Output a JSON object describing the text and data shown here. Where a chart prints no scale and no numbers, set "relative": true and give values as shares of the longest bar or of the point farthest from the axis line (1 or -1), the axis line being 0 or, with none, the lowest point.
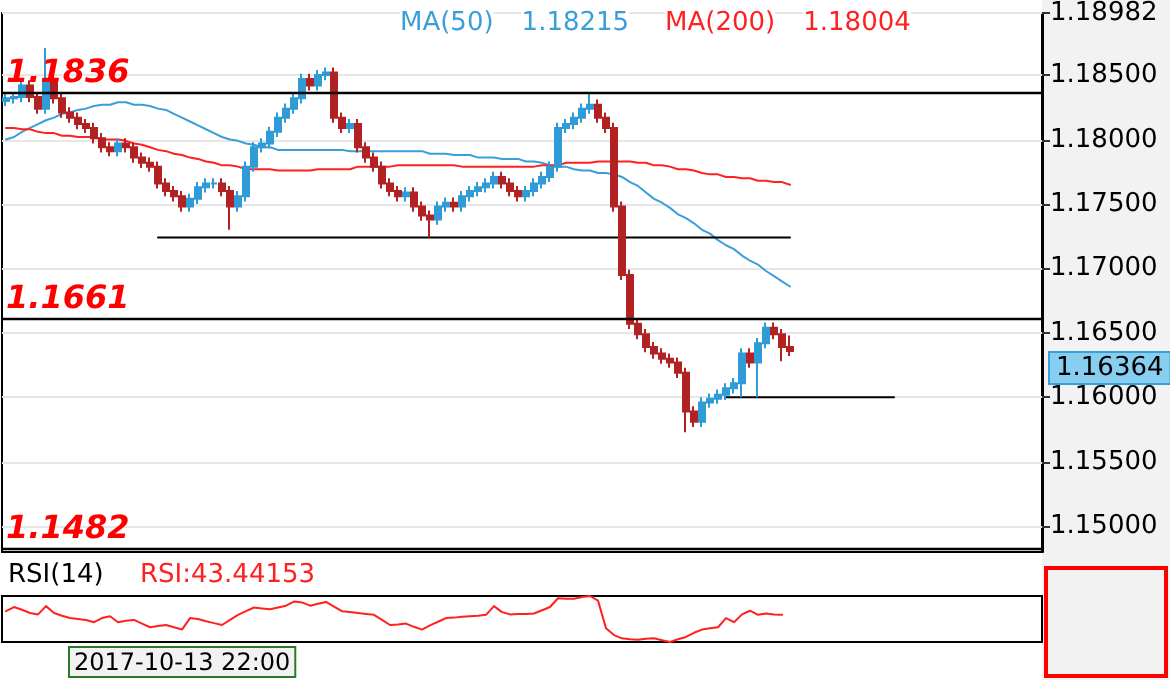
{
  "chart_data": [
    {
      "type": "candlestick",
      "grid": "y",
      "tick_labels": "y",
      "marker": "none",
      "annotations": [
        "1.18215",
        "1.18004",
        "1.16364"
      ],
      "categories": [
        null,
        null,
        null,
        null,
        null,
        null,
        null,
        null,
        null,
        null,
        null,
        null,
        null,
        null,
        null,
        null,
        null,
        null,
        null,
        null,
        null,
        null,
        null,
        null,
        null,
        null,
        null,
        null,
        null,
        null,
        null,
        null,
        null,
        null,
        null,
        null,
        null,
        null,
        null,
        null,
        null,
        null,
        null,
        null,
        null,
        null,
        null,
        null,
        null,
        null,
        null,
        null,
        null,
        null,
        null,
        null,
        null,
        null,
        null,
        null,
        null,
        null,
        null,
        null,
        null,
        null,
        null,
        null,
        null,
        null,
        null,
        null,
        null,
        null,
        null,
        null,
        null,
        null,
        null,
        null,
        null,
        null,
        null,
        null,
        null,
        null,
        null,
        null,
        null,
        null,
        null,
        null,
        null,
        null,
        null,
        null,
        null,
        null,
        null,
        null,
        null,
        null,
        null,
        null,
        null,
        null,
        null,
        null,
        null,
        null,
        null,
        null,
        null,
        null,
        null,
        null,
        null,
        null,
        null,
        null,
        null,
        null,
        null,
        null,
        null,
        null,
        null,
        null,
        null,
        null
      ],
      "ylim": [
        1.148,
        1.18982
      ],
      "yticks": [
        {
          "value": 1.15,
          "label": "1.15000"
        },
        {
          "value": 1.155,
          "label": "1.15500"
        },
        {
          "value": 1.16,
          "label": "1.16000"
        },
        {
          "value": 1.165,
          "label": "1.16500"
        },
        {
          "value": 1.17,
          "label": "1.17000"
        },
        {
          "value": 1.175,
          "label": "1.17500"
        },
        {
          "value": 1.18,
          "label": "1.18000"
        },
        {
          "value": 1.185,
          "label": "1.18500"
        },
        {
          "value": 1.18982,
          "label": "1.18982"
        }
      ],
      "ref_lines": [
        {
          "axis": "y",
          "value": 1.1836,
          "label": "1.1836",
          "color": "#000000"
        },
        {
          "axis": "y",
          "value": 1.1661,
          "label": "1.1661",
          "color": "#000000"
        },
        {
          "axis": "y",
          "value": 1.1482,
          "label": "1.1482",
          "color": "#000000"
        }
      ],
      "ohlc": [
        [
          1.183,
          1.1836,
          1.1826,
          1.1832
        ],
        [
          1.1832,
          1.1837,
          1.1828,
          1.1833
        ],
        [
          1.1833,
          1.1846,
          1.1829,
          1.1842
        ],
        [
          1.1842,
          1.1846,
          1.1829,
          1.1833
        ],
        [
          1.1833,
          1.1837,
          1.182,
          1.1824
        ],
        [
          1.1824,
          1.1871,
          1.182,
          1.1847
        ],
        [
          1.1847,
          1.1851,
          1.1828,
          1.1832
        ],
        [
          1.1832,
          1.1836,
          1.1817,
          1.1821
        ],
        [
          1.1821,
          1.1825,
          1.1813,
          1.1817
        ],
        [
          1.1817,
          1.1821,
          1.1808,
          1.1812
        ],
        [
          1.1812,
          1.1816,
          1.1805,
          1.1809
        ],
        [
          1.1809,
          1.1813,
          1.1797,
          1.1801
        ],
        [
          1.1801,
          1.1805,
          1.179,
          1.1794
        ],
        [
          1.1794,
          1.1798,
          1.1787,
          1.1791
        ],
        [
          1.1791,
          1.1801,
          1.1787,
          1.1797
        ],
        [
          1.1797,
          1.1801,
          1.179,
          1.1794
        ],
        [
          1.1794,
          1.1798,
          1.1782,
          1.1786
        ],
        [
          1.1786,
          1.179,
          1.1778,
          1.1782
        ],
        [
          1.1782,
          1.1786,
          1.1775,
          1.1779
        ],
        [
          1.1779,
          1.1783,
          1.1762,
          1.1766
        ],
        [
          1.1766,
          1.177,
          1.1756,
          1.176
        ],
        [
          1.176,
          1.1764,
          1.1752,
          1.1756
        ],
        [
          1.1756,
          1.176,
          1.1744,
          1.1748
        ],
        [
          1.1748,
          1.1758,
          1.1744,
          1.1754
        ],
        [
          1.1754,
          1.1767,
          1.175,
          1.1763
        ],
        [
          1.1763,
          1.177,
          1.1759,
          1.1766
        ],
        [
          1.1766,
          1.177,
          1.1762,
          1.1766
        ],
        [
          1.1766,
          1.177,
          1.1756,
          1.176
        ],
        [
          1.176,
          1.1764,
          1.173,
          1.1748
        ],
        [
          1.1748,
          1.176,
          1.1744,
          1.1756
        ],
        [
          1.1756,
          1.1783,
          1.1752,
          1.1779
        ],
        [
          1.1779,
          1.1798,
          1.1775,
          1.1794
        ],
        [
          1.1794,
          1.1801,
          1.179,
          1.1797
        ],
        [
          1.1797,
          1.181,
          1.1793,
          1.1806
        ],
        [
          1.1806,
          1.1821,
          1.1802,
          1.1817
        ],
        [
          1.1817,
          1.1828,
          1.1813,
          1.1824
        ],
        [
          1.1824,
          1.1836,
          1.182,
          1.1832
        ],
        [
          1.1832,
          1.1851,
          1.1828,
          1.1847
        ],
        [
          1.1847,
          1.1851,
          1.1838,
          1.1842
        ],
        [
          1.1842,
          1.1854,
          1.1838,
          1.185
        ],
        [
          1.185,
          1.1856,
          1.1846,
          1.1852
        ],
        [
          1.1852,
          1.1856,
          1.1813,
          1.1817
        ],
        [
          1.1817,
          1.1821,
          1.1805,
          1.1809
        ],
        [
          1.1809,
          1.1816,
          1.1805,
          1.1812
        ],
        [
          1.1812,
          1.1816,
          1.179,
          1.1794
        ],
        [
          1.1794,
          1.1798,
          1.1782,
          1.1786
        ],
        [
          1.1786,
          1.179,
          1.1775,
          1.1779
        ],
        [
          1.1779,
          1.1783,
          1.1762,
          1.1766
        ],
        [
          1.1766,
          1.177,
          1.1756,
          1.176
        ],
        [
          1.176,
          1.1764,
          1.1752,
          1.1756
        ],
        [
          1.1756,
          1.1763,
          1.1752,
          1.1759
        ],
        [
          1.1759,
          1.1763,
          1.1744,
          1.1748
        ],
        [
          1.1748,
          1.1752,
          1.1737,
          1.1741
        ],
        [
          1.1741,
          1.1745,
          1.1724,
          1.1738
        ],
        [
          1.1738,
          1.1752,
          1.1734,
          1.1748
        ],
        [
          1.1748,
          1.1755,
          1.1744,
          1.1751
        ],
        [
          1.1751,
          1.1755,
          1.1744,
          1.1748
        ],
        [
          1.1748,
          1.176,
          1.1744,
          1.1756
        ],
        [
          1.1756,
          1.1764,
          1.1752,
          1.176
        ],
        [
          1.176,
          1.1767,
          1.1756,
          1.1763
        ],
        [
          1.1763,
          1.177,
          1.1759,
          1.1766
        ],
        [
          1.1766,
          1.1775,
          1.1762,
          1.1771
        ],
        [
          1.1771,
          1.1775,
          1.1762,
          1.1766
        ],
        [
          1.1766,
          1.177,
          1.1756,
          1.176
        ],
        [
          1.176,
          1.1764,
          1.1752,
          1.1756
        ],
        [
          1.1756,
          1.1764,
          1.1752,
          1.176
        ],
        [
          1.176,
          1.177,
          1.1756,
          1.1766
        ],
        [
          1.1766,
          1.1775,
          1.1762,
          1.1771
        ],
        [
          1.1771,
          1.1783,
          1.1767,
          1.1779
        ],
        [
          1.1779,
          1.1813,
          1.1775,
          1.1809
        ],
        [
          1.1809,
          1.1816,
          1.1805,
          1.1812
        ],
        [
          1.1812,
          1.1821,
          1.1808,
          1.1817
        ],
        [
          1.1817,
          1.1828,
          1.1813,
          1.1824
        ],
        [
          1.1824,
          1.1836,
          1.182,
          1.1827
        ],
        [
          1.1827,
          1.1831,
          1.1813,
          1.1817
        ],
        [
          1.1817,
          1.1821,
          1.1805,
          1.1809
        ],
        [
          1.1809,
          1.1813,
          1.1744,
          1.1748
        ],
        [
          1.1748,
          1.1752,
          1.1691,
          1.1695
        ],
        [
          1.1695,
          1.1699,
          1.1653,
          1.1657
        ],
        [
          1.1657,
          1.1661,
          1.1645,
          1.1649
        ],
        [
          1.1649,
          1.1653,
          1.1635,
          1.1639
        ],
        [
          1.1639,
          1.1643,
          1.163,
          1.1634
        ],
        [
          1.1634,
          1.1638,
          1.1626,
          1.163
        ],
        [
          1.163,
          1.1634,
          1.1623,
          1.1627
        ],
        [
          1.1627,
          1.1631,
          1.1615,
          1.1619
        ],
        [
          1.1619,
          1.1623,
          1.1573,
          1.1589
        ],
        [
          1.1589,
          1.1593,
          1.1577,
          1.1581
        ],
        [
          1.1581,
          1.16,
          1.1577,
          1.1596
        ],
        [
          1.1596,
          1.1603,
          1.1592,
          1.1599
        ],
        [
          1.1599,
          1.1606,
          1.1595,
          1.1602
        ],
        [
          1.1602,
          1.1611,
          1.1598,
          1.1607
        ],
        [
          1.1607,
          1.1615,
          1.1603,
          1.1611
        ],
        [
          1.1611,
          1.1638,
          1.16,
          1.1634
        ],
        [
          1.1634,
          1.1638,
          1.1623,
          1.1627
        ],
        [
          1.1627,
          1.1646,
          1.16,
          1.1642
        ],
        [
          1.1642,
          1.1658,
          1.1638,
          1.1654
        ],
        [
          1.1654,
          1.1658,
          1.1645,
          1.1649
        ],
        [
          1.1649,
          1.1653,
          1.1628,
          1.1639
        ],
        [
          1.1639,
          1.1648,
          1.1632,
          1.1636
        ],
        null,
        null,
        null,
        null,
        null,
        null,
        null,
        null,
        null,
        null,
        null,
        null,
        null,
        null,
        null,
        null,
        null,
        null,
        null,
        null,
        null,
        null,
        null,
        null,
        null,
        null,
        null,
        null,
        null,
        null,
        null
      ],
      "series": [
        {
          "type": "line",
          "name": "MA(50)",
          "color": "#3a9fd8",
          "values": [
            1.18,
            1.1802,
            1.1806,
            1.1809,
            1.1812,
            1.1815,
            1.1817,
            1.182,
            1.1821,
            1.1823,
            1.1824,
            1.1826,
            1.1827,
            1.1827,
            1.1829,
            1.1829,
            1.1827,
            1.1827,
            1.1826,
            1.1824,
            1.1823,
            1.182,
            1.1817,
            1.1814,
            1.1811,
            1.1808,
            1.1805,
            1.1802,
            1.18,
            1.1799,
            1.1797,
            1.1796,
            1.1794,
            1.1794,
            1.1792,
            1.1792,
            1.1792,
            1.1792,
            1.1792,
            1.1792,
            1.1792,
            1.1792,
            1.1792,
            1.1791,
            1.1791,
            1.1791,
            1.1791,
            1.1791,
            1.1791,
            1.1791,
            1.1791,
            1.1791,
            1.1791,
            1.1789,
            1.1789,
            1.1789,
            1.1788,
            1.1788,
            1.1788,
            1.1786,
            1.1786,
            1.1786,
            1.1785,
            1.1785,
            1.1785,
            1.1783,
            1.1783,
            1.1782,
            1.178,
            1.1779,
            1.1779,
            1.1777,
            1.1776,
            1.1776,
            1.1774,
            1.1774,
            1.1773,
            1.1771,
            1.1767,
            1.1764,
            1.1759,
            1.1754,
            1.1751,
            1.1747,
            1.1742,
            1.1739,
            1.1735,
            1.173,
            1.1727,
            1.1722,
            1.1718,
            1.1715,
            1.171,
            1.1706,
            1.1703,
            1.1698,
            1.1694,
            1.169,
            1.1686,
            null,
            null,
            null,
            null,
            null,
            null,
            null,
            null,
            null,
            null,
            null,
            null,
            null,
            null,
            null,
            null,
            null,
            null,
            null,
            null,
            null,
            null,
            null,
            null,
            null,
            null,
            null,
            null,
            null,
            null,
            null
          ]
        },
        {
          "type": "line",
          "name": "MA(200)",
          "color": "#ff2020",
          "values": [
            1.1809,
            1.1809,
            1.1808,
            1.1808,
            1.1806,
            1.1805,
            1.1805,
            1.1803,
            1.1803,
            1.1802,
            1.1802,
            1.1802,
            1.18,
            1.18,
            1.18,
            1.1799,
            1.1797,
            1.1796,
            1.1794,
            1.1792,
            1.1791,
            1.1789,
            1.1788,
            1.1786,
            1.1785,
            1.1783,
            1.1782,
            1.178,
            1.178,
            1.1779,
            1.1777,
            1.1777,
            1.1777,
            1.1777,
            1.1776,
            1.1776,
            1.1776,
            1.1776,
            1.1776,
            1.1777,
            1.1777,
            1.1777,
            1.1777,
            1.1777,
            1.1779,
            1.1779,
            1.1779,
            1.1779,
            1.1779,
            1.178,
            1.178,
            1.178,
            1.178,
            1.178,
            1.178,
            1.178,
            1.178,
            1.1779,
            1.1779,
            1.1779,
            1.1779,
            1.1779,
            1.1779,
            1.1779,
            1.1779,
            1.1779,
            1.1779,
            1.178,
            1.178,
            1.178,
            1.1782,
            1.1782,
            1.1782,
            1.1782,
            1.1783,
            1.1783,
            1.1783,
            1.1783,
            1.1783,
            1.1782,
            1.1782,
            1.178,
            1.178,
            1.1779,
            1.1777,
            1.1777,
            1.1776,
            1.1774,
            1.1773,
            1.1773,
            1.1771,
            1.1771,
            1.177,
            1.177,
            1.1768,
            1.1768,
            1.1767,
            1.1767,
            1.1765,
            null,
            null,
            null,
            null,
            null,
            null,
            null,
            null,
            null,
            null,
            null,
            null,
            null,
            null,
            null,
            null,
            null,
            null,
            null,
            null,
            null,
            null,
            null,
            null,
            null,
            null,
            null,
            null,
            null,
            null,
            null
          ]
        },
        {
          "type": "line",
          "color": "#000000",
          "values": [
            null,
            null,
            null,
            null,
            null,
            null,
            null,
            null,
            null,
            null,
            null,
            null,
            null,
            null,
            null,
            null,
            null,
            null,
            null,
            1.1724,
            1.1724,
            1.1724,
            1.1724,
            1.1724,
            1.1724,
            1.1724,
            1.1724,
            1.1724,
            1.1724,
            1.1724,
            1.1724,
            1.1724,
            1.1724,
            1.1724,
            1.1724,
            1.1724,
            1.1724,
            1.1724,
            1.1724,
            1.1724,
            1.1724,
            1.1724,
            1.1724,
            1.1724,
            1.1724,
            1.1724,
            1.1724,
            1.1724,
            1.1724,
            1.1724,
            1.1724,
            1.1724,
            1.1724,
            1.1724,
            1.1724,
            1.1724,
            1.1724,
            1.1724,
            1.1724,
            1.1724,
            1.1724,
            1.1724,
            1.1724,
            1.1724,
            1.1724,
            1.1724,
            1.1724,
            1.1724,
            1.1724,
            1.1724,
            1.1724,
            1.1724,
            1.1724,
            1.1724,
            1.1724,
            1.1724,
            1.1724,
            1.1724,
            1.1724,
            1.1724,
            1.1724,
            1.1724,
            1.1724,
            1.1724,
            1.1724,
            1.1724,
            1.1724,
            1.1724,
            1.1724,
            1.1724,
            1.1724,
            1.1724,
            1.1724,
            1.1724,
            1.1724,
            1.1724,
            1.1724,
            1.1724,
            1.1724,
            null,
            null,
            null,
            null,
            null,
            null,
            null,
            null,
            null,
            null,
            null,
            null,
            null,
            null,
            null,
            null,
            null,
            null,
            null,
            null,
            null,
            null,
            null,
            null,
            null,
            null,
            null,
            null,
            null,
            null,
            null
          ]
        },
        {
          "type": "line",
          "color": "#000000",
          "values": [
            null,
            null,
            null,
            null,
            null,
            null,
            null,
            null,
            null,
            null,
            null,
            null,
            null,
            null,
            null,
            null,
            null,
            null,
            null,
            null,
            null,
            null,
            null,
            null,
            null,
            null,
            null,
            null,
            null,
            null,
            null,
            null,
            null,
            null,
            null,
            null,
            null,
            null,
            null,
            null,
            null,
            null,
            null,
            null,
            null,
            null,
            null,
            null,
            null,
            null,
            null,
            null,
            null,
            null,
            null,
            null,
            null,
            null,
            null,
            null,
            null,
            null,
            null,
            null,
            null,
            null,
            null,
            null,
            null,
            null,
            null,
            null,
            null,
            null,
            null,
            null,
            null,
            null,
            null,
            null,
            null,
            null,
            null,
            null,
            null,
            null,
            null,
            null,
            null,
            null,
            1.16,
            1.16,
            1.16,
            1.16,
            1.16,
            1.16,
            1.16,
            1.16,
            1.16,
            1.16,
            1.16,
            1.16,
            1.16,
            1.16,
            1.16,
            1.16,
            1.16,
            1.16,
            1.16,
            1.16,
            1.16,
            1.16,
            null,
            null,
            null,
            null,
            null,
            null,
            null,
            null,
            null,
            null,
            null,
            null,
            null,
            null,
            null,
            null,
            null,
            null
          ]
        }
      ]
    },
    {
      "type": "line",
      "title": "RSI(14)",
      "annotations": [
        "RSI:43.44153",
        "2017-10-13 22:00"
      ],
      "relative": true,
      "marker": "none",
      "categories": [
        null,
        null,
        null,
        null,
        null,
        null,
        null,
        null,
        null,
        null,
        null,
        null,
        null,
        null,
        null,
        null,
        null,
        null,
        null,
        null,
        null,
        null,
        null,
        null,
        null,
        null,
        null,
        null,
        null,
        null,
        null,
        null,
        null,
        null,
        null,
        null,
        null,
        null,
        null,
        null,
        null,
        null,
        null,
        null,
        null,
        null,
        null,
        null,
        null,
        null,
        null,
        null,
        null,
        null,
        null,
        null,
        null,
        null,
        null,
        null,
        null,
        null,
        null,
        null,
        null,
        null,
        null,
        null,
        null,
        null,
        null,
        null,
        null,
        null,
        null,
        null,
        null,
        null,
        null,
        null,
        null,
        null,
        null,
        null,
        null,
        null,
        null,
        null,
        null,
        null,
        null,
        null,
        null,
        null,
        null,
        null,
        null,
        null,
        null,
        null,
        null,
        null,
        null,
        null,
        null,
        null,
        null,
        null,
        null,
        null,
        null,
        null,
        null,
        null,
        null,
        null,
        null,
        null,
        null,
        null,
        null,
        null,
        null,
        null,
        null,
        null,
        null,
        null,
        null,
        null
      ],
      "series": [
        {
          "color": "#ff2020",
          "values": [
            0.67,
            0.76,
            0.7,
            0.63,
            0.6,
            0.78,
            0.63,
            0.57,
            0.52,
            0.5,
            0.48,
            0.43,
            0.52,
            0.56,
            0.43,
            0.46,
            0.48,
            0.4,
            0.32,
            0.35,
            0.37,
            0.32,
            0.27,
            0.52,
            0.5,
            0.45,
            0.41,
            0.37,
            0.48,
            0.59,
            0.67,
            0.75,
            0.73,
            0.71,
            0.75,
            0.79,
            0.88,
            0.86,
            0.79,
            0.83,
            0.87,
            0.77,
            0.67,
            0.65,
            0.63,
            0.61,
            0.59,
            0.48,
            0.37,
            0.38,
            0.4,
            0.33,
            0.27,
            0.36,
            0.44,
            0.52,
            0.53,
            0.55,
            0.56,
            0.57,
            0.59,
            0.78,
            0.65,
            0.6,
            0.61,
            0.61,
            0.62,
            0.69,
            0.76,
            0.95,
            0.94,
            0.94,
            0.98,
            1,
            0.9,
            0.3,
            0.15,
            0.08,
            0.06,
            0.05,
            0.07,
            0.08,
            0.04,
            0,
            0.06,
            0.11,
            0.2,
            0.27,
            0.3,
            0.32,
            0.52,
            0.43,
            0.6,
            0.68,
            0.59,
            0.62,
            0.6,
            0.59,
            null,
            null,
            null,
            null,
            null,
            null,
            null,
            null,
            null,
            null,
            null,
            null,
            null,
            null,
            null,
            null,
            null,
            null,
            null,
            null,
            null,
            null,
            null,
            null,
            null,
            null,
            null,
            null,
            null,
            null,
            null,
            null
          ]
        }
      ]
    }
  ]
}
